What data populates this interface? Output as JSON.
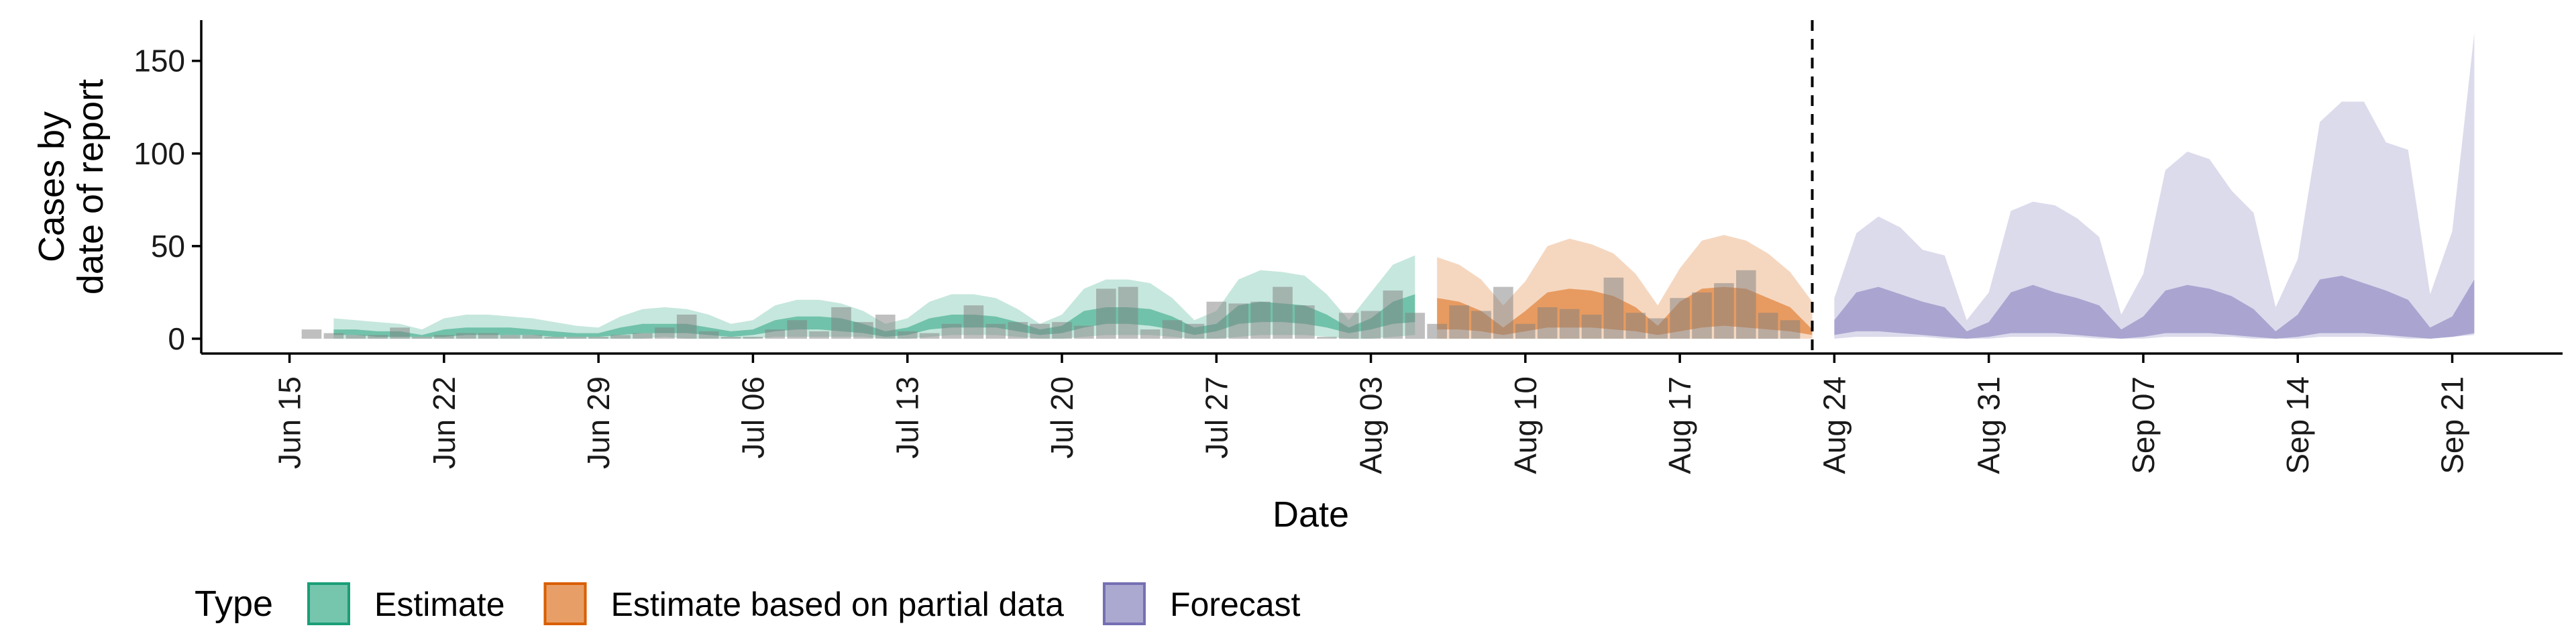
{
  "chart_data": {
    "type": "area",
    "xlabel": "Date",
    "ylabel_lines": [
      "Cases by",
      "date of report"
    ],
    "ylim": [
      -8,
      172
    ],
    "xlim": [
      "2020-06-11",
      "2020-09-26"
    ],
    "y_ticks": [
      0,
      50,
      100,
      150
    ],
    "x_ticks": [
      {
        "date": "2020-06-15",
        "label": "Jun 15"
      },
      {
        "date": "2020-06-22",
        "label": "Jun 22"
      },
      {
        "date": "2020-06-29",
        "label": "Jun 29"
      },
      {
        "date": "2020-07-06",
        "label": "Jul 06"
      },
      {
        "date": "2020-07-13",
        "label": "Jul 13"
      },
      {
        "date": "2020-07-20",
        "label": "Jul 20"
      },
      {
        "date": "2020-07-27",
        "label": "Jul 27"
      },
      {
        "date": "2020-08-03",
        "label": "Aug 03"
      },
      {
        "date": "2020-08-10",
        "label": "Aug 10"
      },
      {
        "date": "2020-08-17",
        "label": "Aug 17"
      },
      {
        "date": "2020-08-24",
        "label": "Aug 24"
      },
      {
        "date": "2020-08-31",
        "label": "Aug 31"
      },
      {
        "date": "2020-09-07",
        "label": "Sep 07"
      },
      {
        "date": "2020-09-14",
        "label": "Sep 14"
      },
      {
        "date": "2020-09-21",
        "label": "Sep 21"
      }
    ],
    "forecast_cutoff": "2020-08-23",
    "legend": {
      "title": "Type",
      "position": "bottom"
    },
    "series": [
      {
        "name": "Estimate",
        "color": "#1b9e77",
        "dates": [
          "2020-06-17",
          "2020-06-18",
          "2020-06-19",
          "2020-06-20",
          "2020-06-21",
          "2020-06-22",
          "2020-06-23",
          "2020-06-24",
          "2020-06-25",
          "2020-06-26",
          "2020-06-27",
          "2020-06-28",
          "2020-06-29",
          "2020-06-30",
          "2020-07-01",
          "2020-07-02",
          "2020-07-03",
          "2020-07-04",
          "2020-07-05",
          "2020-07-06",
          "2020-07-07",
          "2020-07-08",
          "2020-07-09",
          "2020-07-10",
          "2020-07-11",
          "2020-07-12",
          "2020-07-13",
          "2020-07-14",
          "2020-07-15",
          "2020-07-16",
          "2020-07-17",
          "2020-07-18",
          "2020-07-19",
          "2020-07-20",
          "2020-07-21",
          "2020-07-22",
          "2020-07-23",
          "2020-07-24",
          "2020-07-25",
          "2020-07-26",
          "2020-07-27",
          "2020-07-28",
          "2020-07-29",
          "2020-07-30",
          "2020-07-31",
          "2020-08-01",
          "2020-08-02",
          "2020-08-03",
          "2020-08-04",
          "2020-08-05"
        ],
        "lower90": [
          0,
          0,
          0,
          0,
          0,
          0,
          0,
          0,
          0,
          0,
          0,
          0,
          0,
          0,
          0,
          1,
          0,
          0,
          0,
          0,
          1,
          1,
          1,
          1,
          1,
          0,
          0,
          1,
          2,
          2,
          2,
          1,
          0,
          0,
          1,
          2,
          2,
          2,
          1,
          0,
          0,
          1,
          2,
          2,
          2,
          1,
          0,
          0,
          1,
          2
        ],
        "upper90": [
          11,
          10,
          9,
          8,
          5,
          11,
          13,
          13,
          12,
          11,
          9,
          7,
          6,
          12,
          16,
          17,
          16,
          13,
          8,
          10,
          18,
          21,
          21,
          19,
          15,
          8,
          11,
          20,
          24,
          24,
          22,
          16,
          8,
          13,
          27,
          32,
          32,
          30,
          22,
          10,
          15,
          32,
          37,
          36,
          34,
          24,
          10,
          25,
          40,
          45
        ],
        "lower50": [
          2,
          2,
          1,
          1,
          1,
          1,
          2,
          2,
          2,
          2,
          1,
          1,
          1,
          2,
          3,
          3,
          3,
          2,
          1,
          2,
          4,
          5,
          5,
          4,
          3,
          1,
          2,
          5,
          6,
          6,
          6,
          4,
          2,
          3,
          6,
          8,
          8,
          7,
          5,
          2,
          4,
          8,
          9,
          9,
          8,
          6,
          3,
          5,
          8,
          9
        ],
        "upper50": [
          5,
          5,
          4,
          4,
          2,
          5,
          6,
          6,
          6,
          5,
          4,
          3,
          3,
          6,
          8,
          8,
          8,
          6,
          4,
          5,
          10,
          12,
          12,
          11,
          8,
          4,
          6,
          11,
          13,
          13,
          12,
          9,
          5,
          7,
          15,
          17,
          17,
          16,
          12,
          6,
          8,
          18,
          20,
          19,
          18,
          13,
          6,
          11,
          20,
          24
        ]
      },
      {
        "name": "Estimate based on partial data",
        "color": "#d95f02",
        "dates": [
          "2020-08-06",
          "2020-08-07",
          "2020-08-08",
          "2020-08-09",
          "2020-08-10",
          "2020-08-11",
          "2020-08-12",
          "2020-08-13",
          "2020-08-14",
          "2020-08-15",
          "2020-08-16",
          "2020-08-17",
          "2020-08-18",
          "2020-08-19",
          "2020-08-20",
          "2020-08-21",
          "2020-08-22",
          "2020-08-23"
        ],
        "lower90": [
          0,
          0,
          0,
          0,
          0,
          0,
          0,
          0,
          0,
          0,
          0,
          0,
          0,
          0,
          0,
          0,
          0,
          0
        ],
        "upper90": [
          44,
          40,
          32,
          18,
          31,
          50,
          54,
          51,
          46,
          35,
          18,
          38,
          53,
          56,
          53,
          46,
          36,
          20
        ],
        "lower50": [
          5,
          5,
          4,
          2,
          4,
          6,
          6,
          6,
          5,
          4,
          2,
          4,
          6,
          7,
          6,
          5,
          4,
          2
        ],
        "upper50": [
          22,
          20,
          15,
          6,
          15,
          25,
          27,
          26,
          23,
          17,
          7,
          20,
          27,
          28,
          27,
          22,
          17,
          5
        ]
      },
      {
        "name": "Forecast",
        "color": "#7570b3",
        "dates": [
          "2020-08-24",
          "2020-08-25",
          "2020-08-26",
          "2020-08-27",
          "2020-08-28",
          "2020-08-29",
          "2020-08-30",
          "2020-08-31",
          "2020-09-01",
          "2020-09-02",
          "2020-09-03",
          "2020-09-04",
          "2020-09-05",
          "2020-09-06",
          "2020-09-07",
          "2020-09-08",
          "2020-09-09",
          "2020-09-10",
          "2020-09-11",
          "2020-09-12",
          "2020-09-13",
          "2020-09-14",
          "2020-09-15",
          "2020-09-16",
          "2020-09-17",
          "2020-09-18",
          "2020-09-19",
          "2020-09-20",
          "2020-09-21",
          "2020-09-22"
        ],
        "lower90": [
          0,
          1,
          1,
          1,
          1,
          0,
          0,
          0,
          1,
          1,
          1,
          1,
          0,
          0,
          0,
          1,
          1,
          1,
          1,
          0,
          0,
          0,
          1,
          1,
          1,
          1,
          0,
          0,
          1,
          2
        ],
        "upper90": [
          22,
          57,
          66,
          60,
          48,
          45,
          10,
          25,
          69,
          74,
          72,
          65,
          55,
          13,
          35,
          91,
          101,
          97,
          80,
          68,
          17,
          43,
          117,
          128,
          128,
          106,
          102,
          24,
          58,
          165
        ],
        "lower50": [
          2,
          4,
          4,
          3,
          2,
          1,
          0,
          1,
          3,
          3,
          3,
          2,
          1,
          0,
          1,
          3,
          3,
          3,
          2,
          1,
          0,
          1,
          3,
          3,
          3,
          2,
          1,
          0,
          1,
          3
        ],
        "upper50": [
          10,
          25,
          28,
          24,
          20,
          17,
          4,
          9,
          25,
          29,
          25,
          22,
          18,
          5,
          12,
          26,
          29,
          27,
          23,
          16,
          4,
          13,
          32,
          34,
          30,
          26,
          21,
          6,
          12,
          32
        ]
      }
    ],
    "reported_cases": {
      "color": "#7f7f7f",
      "dates": [
        "2020-06-16",
        "2020-06-17",
        "2020-06-18",
        "2020-06-19",
        "2020-06-20",
        "2020-06-21",
        "2020-06-22",
        "2020-06-23",
        "2020-06-24",
        "2020-06-25",
        "2020-06-26",
        "2020-06-27",
        "2020-06-28",
        "2020-06-29",
        "2020-06-30",
        "2020-07-01",
        "2020-07-02",
        "2020-07-03",
        "2020-07-04",
        "2020-07-05",
        "2020-07-06",
        "2020-07-07",
        "2020-07-08",
        "2020-07-09",
        "2020-07-10",
        "2020-07-11",
        "2020-07-12",
        "2020-07-13",
        "2020-07-14",
        "2020-07-15",
        "2020-07-16",
        "2020-07-17",
        "2020-07-18",
        "2020-07-19",
        "2020-07-20",
        "2020-07-21",
        "2020-07-22",
        "2020-07-23",
        "2020-07-24",
        "2020-07-25",
        "2020-07-26",
        "2020-07-27",
        "2020-07-28",
        "2020-07-29",
        "2020-07-30",
        "2020-07-31",
        "2020-08-01",
        "2020-08-02",
        "2020-08-03",
        "2020-08-04",
        "2020-08-05",
        "2020-08-06",
        "2020-08-07",
        "2020-08-08",
        "2020-08-09",
        "2020-08-10",
        "2020-08-11",
        "2020-08-12",
        "2020-08-13",
        "2020-08-14",
        "2020-08-15",
        "2020-08-16",
        "2020-08-17",
        "2020-08-18",
        "2020-08-19",
        "2020-08-20",
        "2020-08-21",
        "2020-08-22"
      ],
      "values": [
        5,
        3,
        2,
        2,
        6,
        1,
        2,
        3,
        3,
        2,
        2,
        1,
        1,
        1,
        2,
        3,
        6,
        13,
        4,
        1,
        1,
        5,
        10,
        4,
        17,
        9,
        13,
        4,
        3,
        8,
        18,
        8,
        9,
        8,
        9,
        7,
        27,
        28,
        5,
        10,
        8,
        20,
        19,
        20,
        28,
        18,
        1,
        14,
        15,
        26,
        14,
        8,
        18,
        15,
        28,
        8,
        17,
        16,
        13,
        33,
        14,
        11,
        22,
        25,
        30,
        37,
        14,
        10
      ]
    }
  }
}
